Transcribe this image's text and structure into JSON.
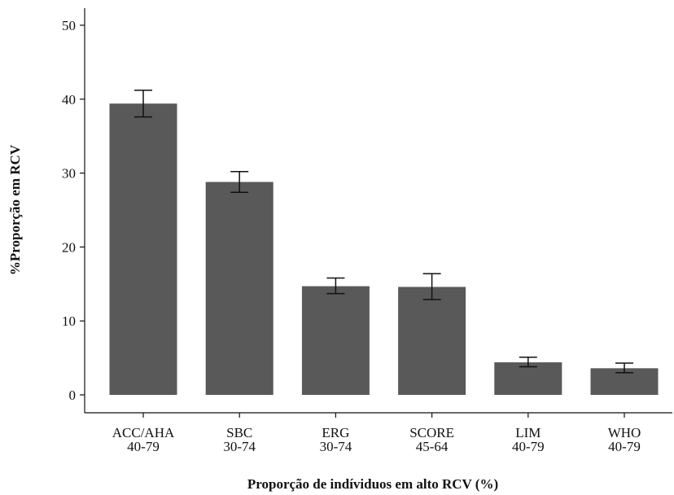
{
  "chart_data": {
    "type": "bar",
    "categories": [
      [
        "ACC/AHA",
        "40-79"
      ],
      [
        "SBC",
        "30-74"
      ],
      [
        "ERG",
        "30-74"
      ],
      [
        "SCORE",
        "45-64"
      ],
      [
        "LIM",
        "40-79"
      ],
      [
        "WHO",
        "40-79"
      ]
    ],
    "values": [
      39.4,
      28.8,
      14.7,
      14.6,
      4.4,
      3.6
    ],
    "error_low": [
      37.6,
      27.4,
      13.7,
      12.9,
      3.8,
      3.0
    ],
    "error_high": [
      41.2,
      30.2,
      15.8,
      16.4,
      5.1,
      4.3
    ],
    "yticks": [
      0,
      10,
      20,
      30,
      40,
      50
    ],
    "ylim": [
      0,
      52
    ],
    "xlabel": "Proporção de indíviduos em alto RCV (%)",
    "ylabel": "%Proporção em RCV",
    "bar_color": "#595959",
    "grid": false,
    "legend": "none"
  }
}
